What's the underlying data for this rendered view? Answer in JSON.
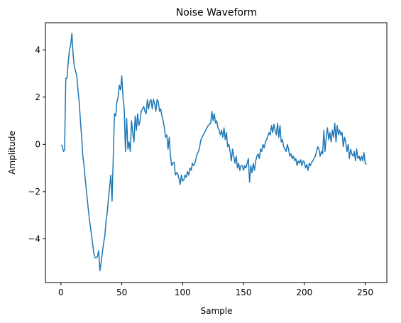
{
  "chart_data": {
    "type": "line",
    "title": "Noise Waveform",
    "xlabel": "Sample",
    "ylabel": "Amplitude",
    "xlim": [
      -12.75,
      267.75
    ],
    "ylim": [
      -5.85,
      5.15
    ],
    "xticks": [
      0,
      50,
      100,
      150,
      200,
      250
    ],
    "yticks": [
      -4,
      -2,
      0,
      2,
      4
    ],
    "ytick_labels": [
      "−4",
      "−2",
      "0",
      "2",
      "4"
    ],
    "grid": false,
    "series": [
      {
        "color": "#1f77b4",
        "values": [
          -0.05,
          -0.05,
          -0.3,
          -0.25,
          2.8,
          2.8,
          3.5,
          4.0,
          4.2,
          4.7,
          3.8,
          3.3,
          3.1,
          2.9,
          2.3,
          1.8,
          1.0,
          0.3,
          -0.5,
          -0.9,
          -1.5,
          -2.0,
          -2.5,
          -3.0,
          -3.4,
          -3.8,
          -4.2,
          -4.6,
          -4.8,
          -4.8,
          -4.75,
          -4.5,
          -5.35,
          -5.0,
          -4.6,
          -4.2,
          -3.9,
          -3.3,
          -2.9,
          -2.3,
          -1.8,
          -1.3,
          -2.4,
          -0.5,
          1.3,
          1.2,
          1.8,
          2.0,
          2.5,
          2.3,
          2.9,
          2.0,
          1.5,
          -0.3,
          1.1,
          -0.2,
          0.1,
          -0.3,
          1.0,
          0.5,
          0.1,
          1.2,
          0.6,
          1.3,
          0.8,
          1.0,
          1.4,
          1.5,
          1.6,
          1.4,
          1.3,
          1.9,
          1.5,
          1.8,
          1.9,
          1.5,
          1.9,
          1.7,
          1.4,
          1.9,
          1.8,
          1.4,
          1.5,
          1.2,
          1.0,
          0.7,
          0.3,
          0.4,
          -0.2,
          0.3,
          -0.5,
          -0.9,
          -0.8,
          -0.75,
          -1.3,
          -1.2,
          -1.25,
          -1.45,
          -1.7,
          -1.3,
          -1.55,
          -1.5,
          -1.3,
          -1.4,
          -1.15,
          -1.3,
          -1.0,
          -1.1,
          -0.8,
          -0.9,
          -0.8,
          -0.6,
          -0.4,
          -0.3,
          -0.1,
          0.2,
          0.3,
          0.4,
          0.5,
          0.6,
          0.7,
          0.8,
          0.85,
          0.9,
          1.4,
          1.0,
          1.3,
          0.9,
          1.0,
          0.7,
          0.6,
          0.4,
          0.6,
          0.3,
          0.7,
          0.2,
          0.5,
          -0.1,
          0.0,
          -0.3,
          -0.7,
          -0.2,
          -0.5,
          -0.8,
          -0.5,
          -1.0,
          -0.8,
          -1.1,
          -0.9,
          -0.9,
          -1.1,
          -0.9,
          -1.0,
          -0.8,
          -0.6,
          -1.6,
          -0.9,
          -1.2,
          -0.8,
          -1.1,
          -0.7,
          -0.5,
          -0.4,
          -0.6,
          -0.2,
          -0.3,
          0.0,
          -0.15,
          0.1,
          0.2,
          0.35,
          0.5,
          0.4,
          0.8,
          0.5,
          0.85,
          0.6,
          0.4,
          0.9,
          0.3,
          0.8,
          0.1,
          0.2,
          -0.1,
          -0.2,
          -0.3,
          0.0,
          -0.2,
          -0.5,
          -0.4,
          -0.6,
          -0.5,
          -0.7,
          -0.6,
          -0.9,
          -0.7,
          -0.8,
          -0.65,
          -0.9,
          -0.7,
          -0.75,
          -1.0,
          -0.85,
          -1.1,
          -0.8,
          -0.9,
          -0.75,
          -0.7,
          -0.6,
          -0.5,
          -0.3,
          -0.1,
          -0.2,
          -0.5,
          -0.3,
          -0.4,
          0.6,
          -0.3,
          0.3,
          0.7,
          0.2,
          0.5,
          0.1,
          0.6,
          0.3,
          0.9,
          0.1,
          0.8,
          0.4,
          0.6,
          0.4,
          0.5,
          -0.1,
          0.3,
          0.1,
          -0.3,
          0.0,
          -0.6,
          -0.2,
          -0.4,
          -0.5,
          -0.3,
          -0.7,
          -0.2,
          -0.6,
          -0.5,
          -0.7,
          -0.5,
          -0.7,
          -0.35,
          -0.8,
          -0.85
        ]
      }
    ]
  }
}
